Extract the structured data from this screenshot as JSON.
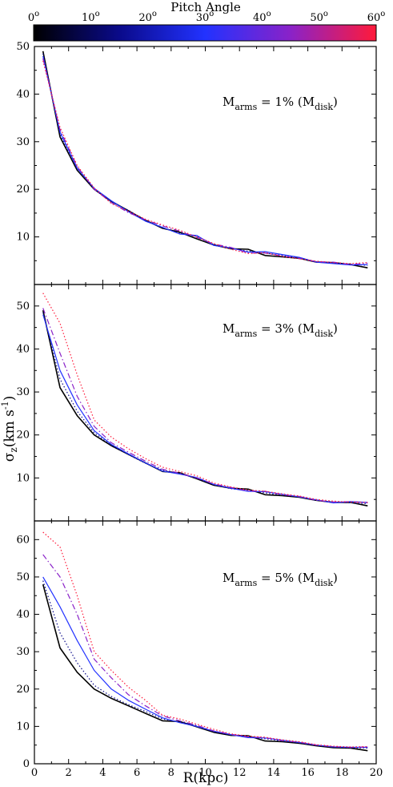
{
  "colorbar": {
    "title": "Pitch Angle",
    "ticks": [
      "0",
      "10",
      "20",
      "30",
      "40",
      "50",
      "60"
    ],
    "tick_superscript": "o",
    "range": [
      0,
      60
    ],
    "stops": [
      "#000000",
      "#0a0a8a",
      "#2232ff",
      "#8a22c8",
      "#ff1a3a"
    ]
  },
  "xlabel": "R(kpc)",
  "ylabel": {
    "main": "σ",
    "sub": "z",
    "open": "(km s",
    "sup": "-1",
    "close": ")"
  },
  "chart_data": [
    {
      "type": "line",
      "annotation": {
        "pre": "M",
        "sub1": "arms",
        "mid": " = 1% (M",
        "sub2": "disk",
        "post": ")"
      },
      "xlim": [
        0,
        20
      ],
      "ylim": [
        0,
        50
      ],
      "xticks": [
        0,
        2,
        4,
        6,
        8,
        10,
        12,
        14,
        16,
        18,
        20
      ],
      "yticks": [
        10,
        20,
        30,
        40,
        50
      ],
      "x": [
        0.5,
        1.5,
        2.5,
        3.5,
        4.5,
        5.5,
        6.5,
        7.5,
        8.5,
        9.5,
        10.5,
        11.5,
        12.5,
        13.5,
        14.5,
        15.5,
        16.5,
        17.5,
        18.5,
        19.5
      ],
      "series": [
        {
          "color": "#000000",
          "style": "solid",
          "values": [
            49,
            31,
            24,
            20,
            17.5,
            15.5,
            13.5,
            11.8,
            11.0,
            9.6,
            8.3,
            7.5,
            7.4,
            6.1,
            5.8,
            5.5,
            4.7,
            4.6,
            4.2,
            3.5
          ]
        },
        {
          "color": "#0a0a8a",
          "style": "dotted",
          "values": [
            48.5,
            31.5,
            24.2,
            20.1,
            17.3,
            15.6,
            13.4,
            11.9,
            10.8,
            10.1,
            8.4,
            7.6,
            7.0,
            6.6,
            6.1,
            5.6,
            4.8,
            4.5,
            4.3,
            4.0
          ]
        },
        {
          "color": "#2232ff",
          "style": "solid",
          "values": [
            48,
            32,
            24.5,
            20.2,
            17.6,
            15.3,
            13.3,
            12.0,
            10.6,
            10.3,
            8.2,
            7.7,
            6.8,
            6.9,
            6.3,
            5.7,
            4.7,
            4.4,
            4.1,
            4.2
          ]
        },
        {
          "color": "#8a22c8",
          "style": "dashdot",
          "values": [
            47.5,
            32.5,
            24.8,
            20.0,
            17.2,
            15.1,
            13.6,
            12.3,
            11.2,
            9.9,
            8.5,
            7.8,
            6.6,
            6.6,
            6.0,
            5.5,
            4.8,
            4.7,
            4.2,
            4.5
          ]
        },
        {
          "color": "#ff1a3a",
          "style": "dotted",
          "values": [
            47,
            33,
            25,
            20.3,
            17.0,
            15.4,
            13.7,
            12.5,
            11.4,
            10.0,
            8.6,
            7.4,
            6.5,
            6.7,
            5.9,
            5.4,
            4.9,
            4.6,
            4.4,
            4.6
          ]
        }
      ]
    },
    {
      "type": "line",
      "annotation": {
        "pre": "M",
        "sub1": "arms",
        "mid": " = 3% (M",
        "sub2": "disk",
        "post": ")"
      },
      "xlim": [
        0,
        20
      ],
      "ylim": [
        0,
        55
      ],
      "xticks": [
        0,
        2,
        4,
        6,
        8,
        10,
        12,
        14,
        16,
        18,
        20
      ],
      "yticks": [
        10,
        20,
        30,
        40,
        50
      ],
      "x": [
        0.5,
        1.5,
        2.5,
        3.5,
        4.5,
        5.5,
        6.5,
        7.5,
        8.5,
        9.5,
        10.5,
        11.5,
        12.5,
        13.5,
        14.5,
        15.5,
        16.5,
        17.5,
        18.5,
        19.5
      ],
      "series": [
        {
          "color": "#000000",
          "style": "solid",
          "values": [
            49,
            31,
            24.5,
            20,
            17.5,
            15.5,
            13.5,
            11.5,
            11.2,
            9.8,
            8.3,
            7.6,
            7.4,
            6.1,
            5.9,
            5.5,
            4.8,
            4.3,
            4.3,
            3.5
          ]
        },
        {
          "color": "#0a0a8a",
          "style": "dotted",
          "values": [
            48.5,
            33,
            25.5,
            20.5,
            17.6,
            15.4,
            13.4,
            11.8,
            11.0,
            9.9,
            8.4,
            7.5,
            7.1,
            6.5,
            6.0,
            5.6,
            4.8,
            4.4,
            4.2,
            4.0
          ]
        },
        {
          "color": "#2232ff",
          "style": "solid",
          "values": [
            48,
            35,
            27,
            21,
            17.8,
            15.6,
            13.5,
            11.6,
            10.9,
            10.1,
            8.5,
            7.6,
            6.9,
            6.8,
            6.2,
            5.6,
            4.9,
            4.2,
            4.5,
            4.3
          ]
        },
        {
          "color": "#8a22c8",
          "style": "dashdot",
          "values": [
            49.5,
            39,
            29,
            22,
            18.2,
            16.0,
            13.9,
            12.0,
            11.1,
            10.0,
            8.6,
            7.8,
            7.0,
            6.9,
            6.1,
            5.7,
            4.8,
            4.4,
            4.5,
            4.2
          ]
        },
        {
          "color": "#ff1a3a",
          "style": "dotted",
          "values": [
            53,
            46,
            34,
            23.5,
            19.5,
            16.8,
            14.5,
            12.5,
            11.5,
            10.5,
            8.8,
            7.9,
            7.2,
            6.9,
            6.3,
            5.8,
            5.0,
            4.6,
            4.4,
            4.3
          ]
        }
      ]
    },
    {
      "type": "line",
      "annotation": {
        "pre": "M",
        "sub1": "arms",
        "mid": " = 5% (M",
        "sub2": "disk",
        "post": ")"
      },
      "xlim": [
        0,
        20
      ],
      "ylim": [
        0,
        65
      ],
      "xticks": [
        0,
        2,
        4,
        6,
        8,
        10,
        12,
        14,
        16,
        18,
        20
      ],
      "yticks": [
        0,
        10,
        20,
        30,
        40,
        50,
        60
      ],
      "x": [
        0.5,
        1.5,
        2.5,
        3.5,
        4.5,
        5.5,
        6.5,
        7.5,
        8.5,
        9.5,
        10.5,
        11.5,
        12.5,
        13.5,
        14.5,
        15.5,
        16.5,
        17.5,
        18.5,
        19.5
      ],
      "series": [
        {
          "color": "#000000",
          "style": "solid",
          "values": [
            48,
            31,
            24.5,
            20,
            17.5,
            15.5,
            13.5,
            11.5,
            11.3,
            9.9,
            8.4,
            7.6,
            7.5,
            6.1,
            5.9,
            5.5,
            4.8,
            4.3,
            4.2,
            3.5
          ]
        },
        {
          "color": "#0a0a8a",
          "style": "dotted",
          "values": [
            49,
            35,
            27,
            21,
            18,
            15.8,
            14,
            12,
            11.2,
            10.2,
            8.6,
            7.7,
            7.3,
            6.7,
            6.1,
            5.6,
            4.9,
            4.5,
            4.3,
            4.2
          ]
        },
        {
          "color": "#2232ff",
          "style": "solid",
          "values": [
            50,
            42,
            33,
            25,
            20,
            17,
            14.6,
            12.3,
            11.0,
            10.0,
            8.7,
            7.8,
            7.0,
            6.9,
            6.3,
            5.7,
            5.0,
            4.5,
            4.4,
            4.4
          ]
        },
        {
          "color": "#8a22c8",
          "style": "dashdot",
          "values": [
            56,
            50,
            40,
            28,
            23,
            18.5,
            15.5,
            12.8,
            11.5,
            10.3,
            8.8,
            7.9,
            7.2,
            7.0,
            6.2,
            5.8,
            5.0,
            4.6,
            4.4,
            4.5
          ]
        },
        {
          "color": "#ff1a3a",
          "style": "dotted",
          "values": [
            62,
            58,
            45,
            30,
            25,
            20.5,
            17,
            13,
            12,
            10.6,
            9.2,
            8.0,
            7.4,
            7.1,
            6.4,
            5.9,
            5.1,
            4.7,
            4.5,
            4.6
          ]
        }
      ]
    }
  ]
}
